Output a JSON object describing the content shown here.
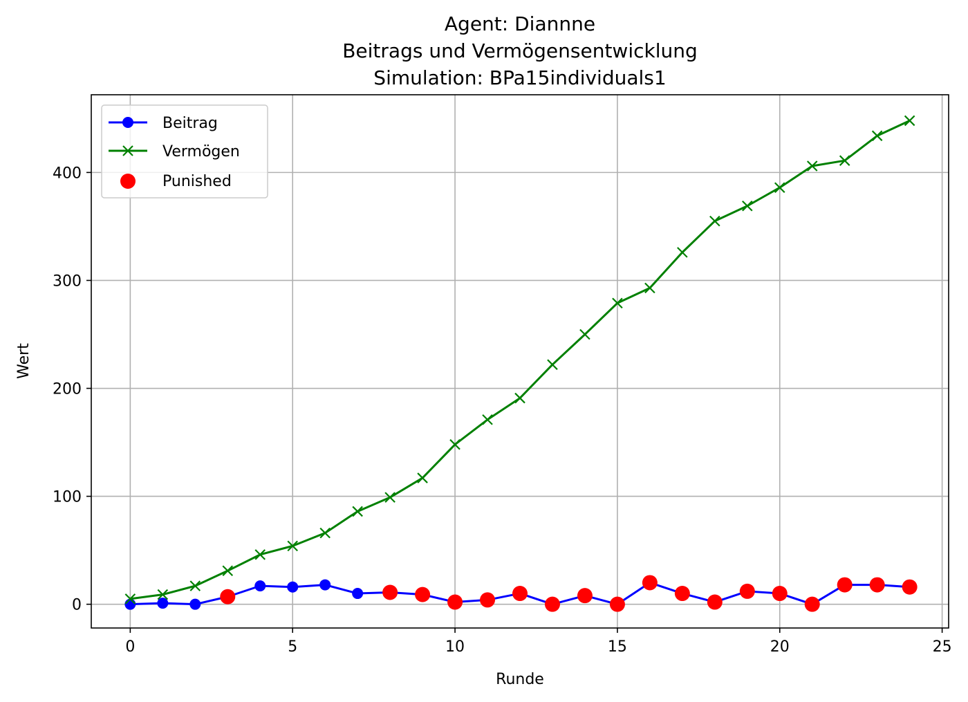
{
  "chart_data": {
    "type": "line",
    "title_lines": [
      "Agent: Diannne",
      "Beitrags und Vermögensentwicklung",
      "Simulation: BPa15individuals1"
    ],
    "xlabel": "Runde",
    "ylabel": "Wert",
    "xlim": [
      -1.2,
      25.2
    ],
    "ylim": [
      -22,
      472
    ],
    "xticks": [
      0,
      5,
      10,
      15,
      20,
      25
    ],
    "yticks": [
      0,
      100,
      200,
      300,
      400
    ],
    "grid": true,
    "legend_position": "top-left",
    "x": [
      0,
      1,
      2,
      3,
      4,
      5,
      6,
      7,
      8,
      9,
      10,
      11,
      12,
      13,
      14,
      15,
      16,
      17,
      18,
      19,
      20,
      21,
      22,
      23,
      24
    ],
    "series": [
      {
        "name": "Beitrag",
        "color": "#0000ff",
        "marker": "circle",
        "values": [
          0,
          1,
          0,
          7,
          17,
          16,
          18,
          10,
          11,
          9,
          2,
          4,
          10,
          0,
          8,
          0,
          20,
          10,
          2,
          12,
          10,
          0,
          18,
          18,
          16
        ]
      },
      {
        "name": "Vermögen",
        "color": "#008000",
        "marker": "x",
        "values": [
          5,
          9,
          17,
          31,
          46,
          54,
          66,
          86,
          99,
          117,
          148,
          171,
          191,
          222,
          250,
          279,
          293,
          326,
          355,
          369,
          386,
          406,
          411,
          434,
          448
        ]
      }
    ],
    "punished": {
      "name": "Punished",
      "color": "#ff0000",
      "x": [
        3,
        8,
        9,
        10,
        11,
        12,
        13,
        14,
        15,
        16,
        17,
        18,
        19,
        20,
        21,
        22,
        23,
        24
      ],
      "y": [
        7,
        11,
        9,
        2,
        4,
        10,
        0,
        8,
        0,
        20,
        10,
        2,
        12,
        10,
        0,
        18,
        18,
        16
      ]
    }
  }
}
